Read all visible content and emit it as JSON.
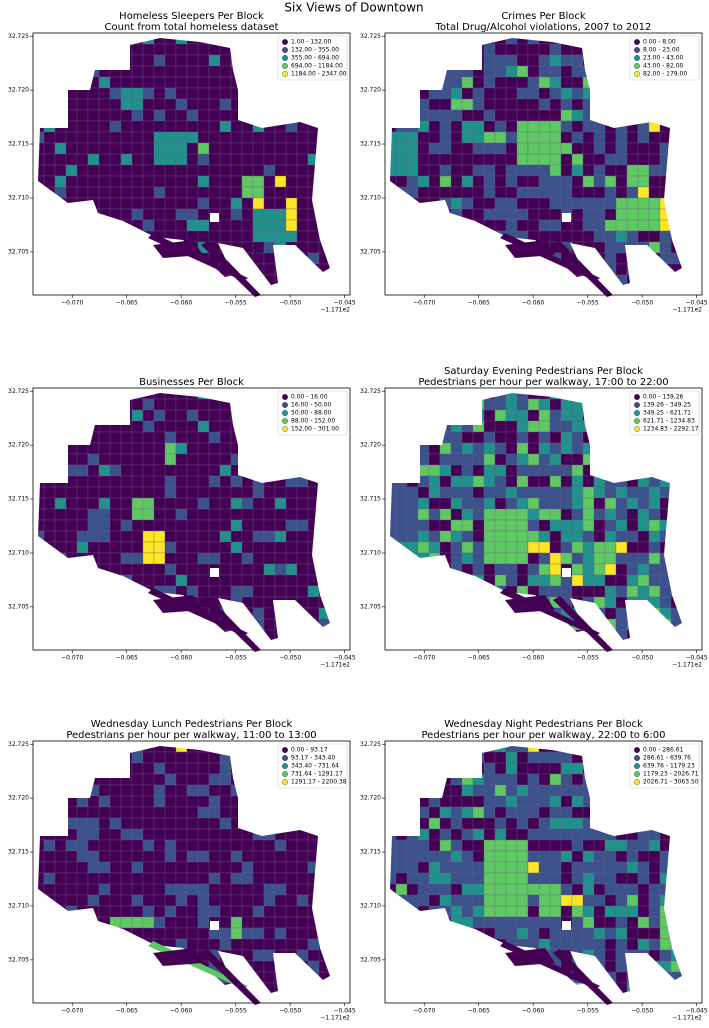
{
  "title": "Six Views of Downtown",
  "colors": [
    "#440154",
    "#3b528b",
    "#21918c",
    "#5ec962",
    "#fde725"
  ],
  "maps": [
    {
      "title": "Homeless Sleepers Per Block",
      "subtitle": "Count from total homeless dataset",
      "legend": [
        "1.00 - 132.00",
        "132.00 - 355.00",
        "355.00 - 694.00",
        "694.00 - 1184.00",
        "1184.00 - 2347.00"
      ],
      "xlim": [
        -0.0736,
        -0.0445
      ],
      "ylim": [
        32.701,
        32.7253
      ],
      "xticks": [
        {
          "value": -0.07,
          "label": "−0.070"
        },
        {
          "value": -0.065,
          "label": "−0.065"
        },
        {
          "value": -0.06,
          "label": "−0.060"
        },
        {
          "value": -0.055,
          "label": "−0.055"
        },
        {
          "value": -0.05,
          "label": "−0.050"
        },
        {
          "value": -0.045,
          "label": "−0.045"
        }
      ],
      "x_offset": "−1.171e2",
      "yticks": [
        32.705,
        {
          "value": 32.71,
          "label": "32.710"
        },
        32.715,
        {
          "value": 32.72,
          "label": "32.720"
        },
        32.725
      ]
    },
    {
      "title": "Crimes Per Block",
      "subtitle": "Total Drug/Alcohol violations, 2007 to 2012",
      "legend": [
        "0.00 - 8.00",
        "8.00 - 23.00",
        "23.00 - 43.00",
        "43.00 - 82.00",
        "82.00 - 179.00"
      ],
      "xlim": [
        -0.0736,
        -0.0445
      ],
      "ylim": [
        32.701,
        32.7253
      ],
      "xticks": [
        {
          "value": -0.07,
          "label": "−0.070"
        },
        {
          "value": -0.065,
          "label": "−0.065"
        },
        {
          "value": -0.06,
          "label": "−0.060"
        },
        {
          "value": -0.055,
          "label": "−0.055"
        },
        {
          "value": -0.05,
          "label": "−0.050"
        },
        {
          "value": -0.045,
          "label": "−0.045"
        }
      ],
      "x_offset": "−1.171e2",
      "yticks": [
        32.705,
        {
          "value": 32.71,
          "label": "32.710"
        },
        32.715,
        {
          "value": 32.72,
          "label": "32.720"
        },
        32.725
      ]
    },
    {
      "title": "Businesses Per Block",
      "legend": [
        "0.00 - 16.00",
        "16.00 - 50.00",
        "50.00 - 88.00",
        "88.00 - 152.00",
        "152.00 - 301.00"
      ],
      "xlim": [
        -0.0736,
        -0.0445
      ],
      "ylim": [
        32.701,
        32.7253
      ],
      "xticks": [
        {
          "value": -0.07,
          "label": "−0.070"
        },
        {
          "value": -0.065,
          "label": "−0.065"
        },
        {
          "value": -0.06,
          "label": "−0.060"
        },
        {
          "value": -0.055,
          "label": "−0.055"
        },
        {
          "value": -0.05,
          "label": "−0.050"
        },
        {
          "value": -0.045,
          "label": "−0.045"
        }
      ],
      "x_offset": "−1.171e2",
      "yticks": [
        32.705,
        {
          "value": 32.71,
          "label": "32.710"
        },
        32.715,
        {
          "value": 32.72,
          "label": "32.720"
        },
        32.725
      ]
    },
    {
      "title": "Saturday Evening Pedestrians Per Block",
      "subtitle": "Pedestrians per hour per walkway, 17:00 to 22:00",
      "legend": [
        "0.00 - 139.26",
        "139.26 - 349.25",
        "349.25 - 621.71",
        "621.71 - 1234.83",
        "1234.83 - 2292.17"
      ],
      "xlim": [
        -0.0736,
        -0.0445
      ],
      "ylim": [
        32.701,
        32.7253
      ],
      "xticks": [
        {
          "value": -0.07,
          "label": "−0.070"
        },
        {
          "value": -0.065,
          "label": "−0.065"
        },
        {
          "value": -0.06,
          "label": "−0.060"
        },
        {
          "value": -0.055,
          "label": "−0.055"
        },
        {
          "value": -0.05,
          "label": "−0.050"
        },
        {
          "value": -0.045,
          "label": "−0.045"
        }
      ],
      "x_offset": "−1.171e2",
      "yticks": [
        32.705,
        {
          "value": 32.71,
          "label": "32.710"
        },
        32.715,
        {
          "value": 32.72,
          "label": "32.720"
        },
        32.725
      ]
    },
    {
      "title": "Wednesday Lunch Pedestrians Per Block",
      "subtitle": "Pedestrians per hour per walkway, 11:00 to 13:00",
      "legend": [
        "0.00 - 93.17",
        "93.17 - 343.40",
        "343.40 - 731.64",
        "731.64 - 1291.17",
        "1291.17 - 2200.38"
      ],
      "xlim": [
        -0.0736,
        -0.0445
      ],
      "ylim": [
        32.701,
        32.7253
      ],
      "xticks": [
        {
          "value": -0.07,
          "label": "−0.070"
        },
        {
          "value": -0.065,
          "label": "−0.065"
        },
        {
          "value": -0.06,
          "label": "−0.060"
        },
        {
          "value": -0.055,
          "label": "−0.055"
        },
        {
          "value": -0.05,
          "label": "−0.050"
        },
        {
          "value": -0.045,
          "label": "−0.045"
        }
      ],
      "x_offset": "−1.171e2",
      "yticks": [
        32.705,
        {
          "value": 32.71,
          "label": "32.710"
        },
        32.715,
        {
          "value": 32.72,
          "label": "32.720"
        },
        32.725
      ]
    },
    {
      "title": "Wednesday Night Pedestrians Per Block",
      "subtitle": "Pedestrians per hour per walkway, 22:00 to 6:00",
      "legend": [
        "0.00 - 286.61",
        "286.61 - 639.76",
        "639.76 - 1179.23",
        "1179.23 - 2026.71",
        "2026.71 - 3063.50"
      ],
      "xlim": [
        -0.0736,
        -0.0445
      ],
      "ylim": [
        32.701,
        32.7253
      ],
      "xticks": [
        {
          "value": -0.07,
          "label": "−0.070"
        },
        {
          "value": -0.065,
          "label": "−0.065"
        },
        {
          "value": -0.06,
          "label": "−0.060"
        },
        {
          "value": -0.055,
          "label": "−0.055"
        },
        {
          "value": -0.05,
          "label": "−0.050"
        },
        {
          "value": -0.045,
          "label": "−0.045"
        }
      ],
      "x_offset": "−1.171e2",
      "yticks": [
        32.705,
        {
          "value": 32.71,
          "label": "32.710"
        },
        32.715,
        {
          "value": 32.72,
          "label": "32.720"
        },
        32.725
      ]
    }
  ]
}
